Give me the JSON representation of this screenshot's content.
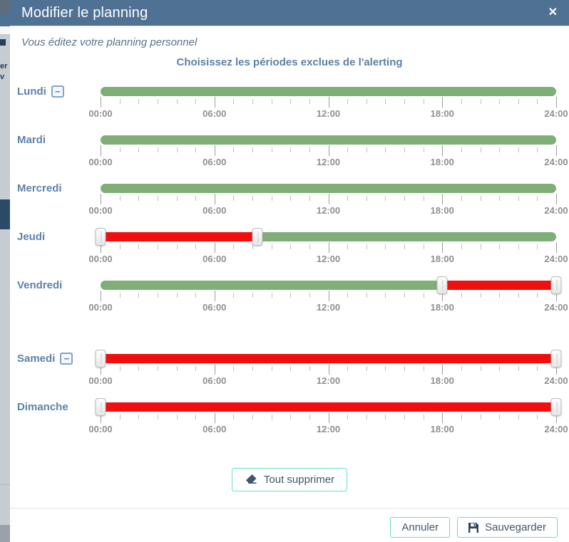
{
  "modal": {
    "title": "Modifier le planning",
    "close_symbol": "✕",
    "subtitle": "Vous éditez votre planning personnel",
    "section_title": "Choisissez les périodes exclues de l'alerting",
    "remove_symbol": "−",
    "axis": {
      "total_hours": 24,
      "major_every_hours": 6,
      "labels": [
        "00:00",
        "06:00",
        "12:00",
        "18:00",
        "24:00"
      ]
    },
    "days": [
      {
        "label": "Lundi",
        "removable": true,
        "gap_before": false,
        "segments": [
          {
            "color": "green",
            "start": 0,
            "end": 24
          }
        ],
        "handles": []
      },
      {
        "label": "Mardi",
        "removable": false,
        "gap_before": false,
        "segments": [
          {
            "color": "green",
            "start": 0,
            "end": 24
          }
        ],
        "handles": []
      },
      {
        "label": "Mercredi",
        "removable": false,
        "gap_before": false,
        "segments": [
          {
            "color": "green",
            "start": 0,
            "end": 24
          }
        ],
        "handles": []
      },
      {
        "label": "Jeudi",
        "removable": false,
        "gap_before": false,
        "segments": [
          {
            "color": "red",
            "start": 0,
            "end": 8.25
          },
          {
            "color": "green",
            "start": 8.25,
            "end": 24
          }
        ],
        "handles": [
          0,
          8.25
        ]
      },
      {
        "label": "Vendredi",
        "removable": false,
        "gap_before": false,
        "segments": [
          {
            "color": "green",
            "start": 0,
            "end": 18
          },
          {
            "color": "red",
            "start": 18,
            "end": 24
          }
        ],
        "handles": [
          18,
          24
        ]
      },
      {
        "label": "Samedi",
        "removable": true,
        "gap_before": true,
        "segments": [
          {
            "color": "red",
            "start": 0,
            "end": 24
          }
        ],
        "handles": [
          0,
          24
        ]
      },
      {
        "label": "Dimanche",
        "removable": false,
        "gap_before": false,
        "segments": [
          {
            "color": "red",
            "start": 0,
            "end": 24
          }
        ],
        "handles": [
          0,
          24
        ]
      }
    ],
    "clear_button": {
      "label": "Tout supprimer",
      "icon": "eraser-icon"
    },
    "footer": {
      "cancel_label": "Annuler",
      "save_label": "Sauvegarder",
      "save_icon": "save-icon"
    }
  },
  "background_fragments": [
    "er",
    "v"
  ],
  "colors": {
    "header_bg": "#4f7294",
    "accent_blue": "#5d81a8",
    "slider_green": "#7fae77",
    "slider_red": "#f10e0e",
    "button_teal_border": "#66e1c4",
    "button_text": "#41566b",
    "tick_major": "#9d9d9d",
    "tick_minor": "#c0c0c0",
    "time_label": "#8f8f8f"
  }
}
